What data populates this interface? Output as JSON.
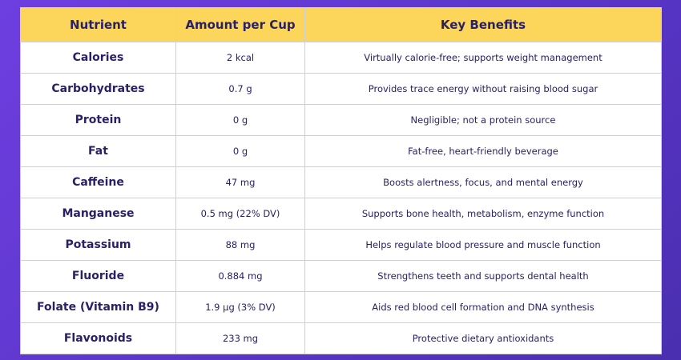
{
  "table": {
    "headers": [
      "Nutrient",
      "Amount per Cup",
      "Key Benefits"
    ],
    "rows": [
      {
        "nutrient": "Calories",
        "amount": "2 kcal",
        "benefit": "Virtually calorie-free; supports weight management"
      },
      {
        "nutrient": "Carbohydrates",
        "amount": "0.7 g",
        "benefit": "Provides trace energy without raising blood sugar"
      },
      {
        "nutrient": "Protein",
        "amount": "0 g",
        "benefit": "Negligible; not a protein source"
      },
      {
        "nutrient": "Fat",
        "amount": "0 g",
        "benefit": "Fat-free, heart-friendly beverage"
      },
      {
        "nutrient": "Caffeine",
        "amount": "47 mg",
        "benefit": "Boosts alertness, focus, and mental energy"
      },
      {
        "nutrient": "Manganese",
        "amount": "0.5 mg (22% DV)",
        "benefit": "Supports bone health, metabolism, enzyme function"
      },
      {
        "nutrient": "Potassium",
        "amount": "88 mg",
        "benefit": "Helps regulate blood pressure and muscle function"
      },
      {
        "nutrient": "Fluoride",
        "amount": "0.884 mg",
        "benefit": "Strengthens teeth and supports dental health"
      },
      {
        "nutrient": "Folate (Vitamin B9)",
        "amount": "1.9 µg (3% DV)",
        "benefit": "Aids red blood cell formation and DNA synthesis"
      },
      {
        "nutrient": "Flavonoids",
        "amount": "233 mg",
        "benefit": "Protective dietary antioxidants"
      }
    ]
  },
  "colors": {
    "header_bg": "#fbd65a",
    "text": "#2a2068",
    "background": "#5a35c8"
  }
}
